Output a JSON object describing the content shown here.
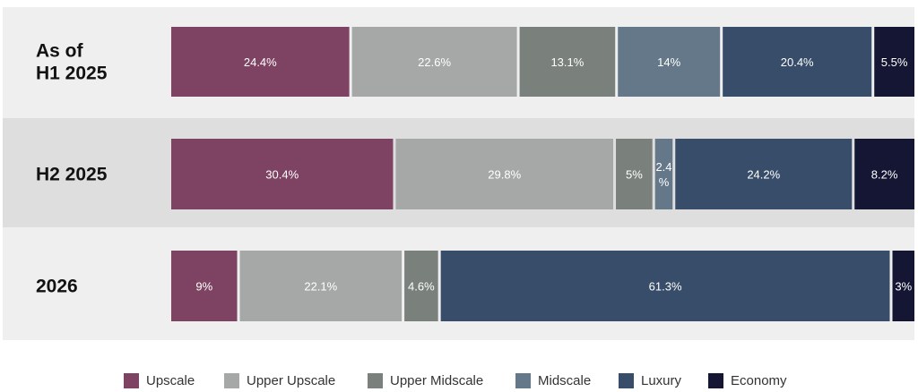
{
  "chart_data": {
    "type": "bar",
    "orientation": "horizontal",
    "stacked": true,
    "categories": [
      [
        "As of",
        "H1 2025"
      ],
      [
        "H2 2025"
      ],
      [
        "2026"
      ]
    ],
    "series": [
      {
        "name": "Upscale",
        "color": "#7e4362",
        "values": [
          24.4,
          30.4,
          9
        ],
        "labels": [
          "24.4%",
          "30.4%",
          "9%"
        ]
      },
      {
        "name": "Upper Upscale",
        "color": "#a5a8a7",
        "values": [
          22.6,
          29.8,
          22.1
        ],
        "labels": [
          "22.6%",
          "29.8%",
          "22.1%"
        ]
      },
      {
        "name": "Upper Midscale",
        "color": "#7a807c",
        "values": [
          13.1,
          5,
          4.6
        ],
        "labels": [
          "13.1%",
          "5%",
          "4.6%"
        ]
      },
      {
        "name": "Midscale",
        "color": "#64788a",
        "values": [
          14,
          2.4,
          0
        ],
        "labels": [
          "14%",
          [
            "2.4",
            "%"
          ],
          ""
        ]
      },
      {
        "name": "Luxury",
        "color": "#384d69",
        "values": [
          20.4,
          24.2,
          61.3
        ],
        "labels": [
          "20.4%",
          "24.2%",
          "61.3%"
        ]
      },
      {
        "name": "Economy",
        "color": "#141634",
        "values": [
          5.5,
          8.2,
          3
        ],
        "labels": [
          "5.5%",
          "8.2%",
          "3%"
        ]
      }
    ],
    "legend_position": "bottom",
    "grid": false
  }
}
